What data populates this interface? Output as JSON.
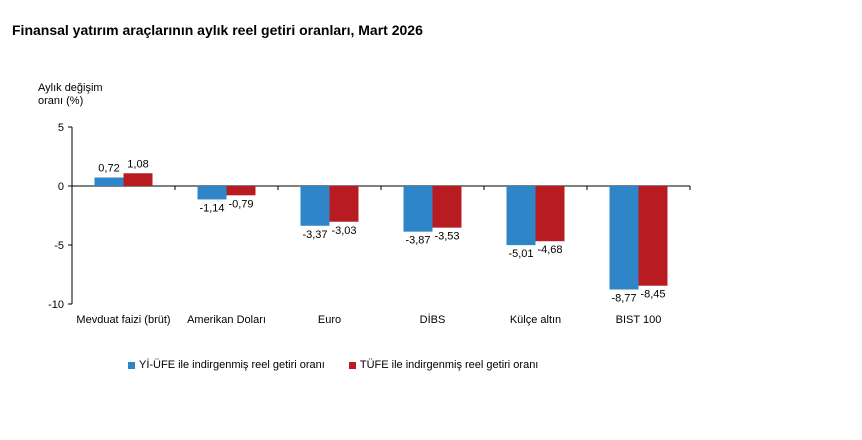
{
  "chart_data": {
    "type": "bar",
    "title": "Finansal yatırım araçlarının aylık reel getiri oranları, Mart 2026",
    "ylabel": [
      "Aylık değişim",
      "oranı (%)"
    ],
    "xlabel": "",
    "categories": [
      "Mevduat faizi (brüt)",
      "Amerikan Doları",
      "Euro",
      "DİBS",
      "Külçe altın",
      "BIST 100"
    ],
    "series": [
      {
        "name": "Yİ-ÜFE ile indirgenmiş reel getiri oranı",
        "color": "#2e86c8",
        "values": [
          0.72,
          -1.14,
          -3.37,
          -3.87,
          -5.01,
          -8.77
        ],
        "labels": [
          "0,72",
          "-1,14",
          "-3,37",
          "-3,87",
          "-5,01",
          "-8,77"
        ]
      },
      {
        "name": "TÜFE ile indirgenmiş reel getiri oranı",
        "color": "#b81c22",
        "values": [
          1.08,
          -0.79,
          -3.03,
          -3.53,
          -4.68,
          -8.45
        ],
        "labels": [
          "1,08",
          "-0,79",
          "-3,03",
          "-3,53",
          "-4,68",
          "-8,45"
        ]
      }
    ],
    "ylim": [
      -10,
      5
    ],
    "yticks": [
      5,
      0,
      -5,
      -10
    ],
    "ytick_labels": [
      "5",
      "0",
      "-5",
      "-10"
    ],
    "grid": false,
    "legend_position": "bottom"
  }
}
